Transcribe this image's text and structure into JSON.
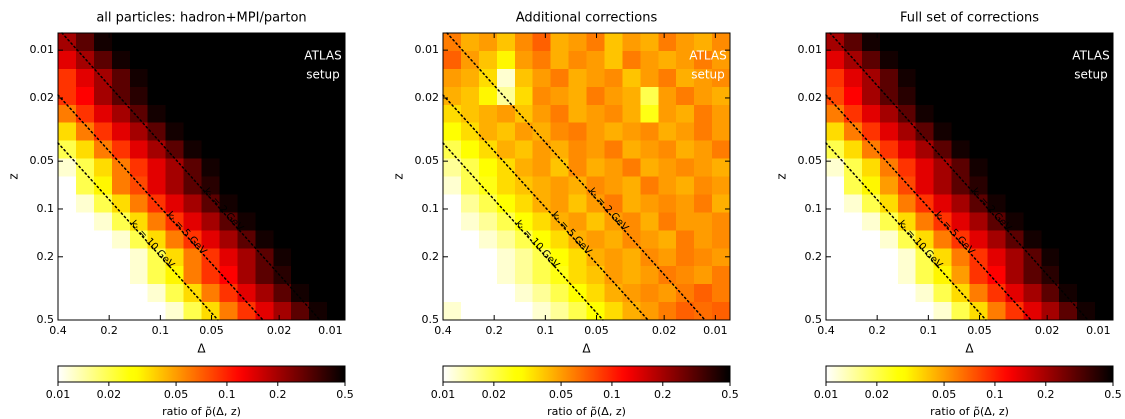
{
  "chart_data": [
    {
      "type": "heatmap",
      "title": "all particles: hadron+MPI/parton",
      "xlabel": "Δ",
      "ylabel": "z",
      "xscale": "log",
      "yscale": "log",
      "y_inverted": true,
      "xlim": [
        0.4,
        0.0082
      ],
      "ylim": [
        0.0078,
        0.5
      ],
      "xticks": [
        0.4,
        0.2,
        0.1,
        0.05,
        0.02,
        0.01
      ],
      "yticks": [
        0.01,
        0.02,
        0.05,
        0.1,
        0.2,
        0.5
      ],
      "colormap": "hot_r",
      "z": [
        [
          0.2,
          0.3,
          0.45,
          0.5,
          0.5,
          0.5,
          0.5,
          0.5,
          0.5,
          0.5,
          0.5,
          0.5,
          0.5,
          0.5,
          0.5,
          0.5
        ],
        [
          0.14,
          0.2,
          0.3,
          0.45,
          0.5,
          0.5,
          0.5,
          0.5,
          0.5,
          0.5,
          0.5,
          0.5,
          0.5,
          0.5,
          0.5,
          0.5
        ],
        [
          0.09,
          0.14,
          0.2,
          0.3,
          0.45,
          0.5,
          0.5,
          0.5,
          0.5,
          0.5,
          0.5,
          0.5,
          0.5,
          0.5,
          0.5,
          0.5
        ],
        [
          0.09,
          0.12,
          0.2,
          0.3,
          0.4,
          0.5,
          0.5,
          0.5,
          0.5,
          0.5,
          0.5,
          0.5,
          0.5,
          0.5,
          0.5,
          0.5
        ],
        [
          0.06,
          0.09,
          0.14,
          0.2,
          0.3,
          0.45,
          0.5,
          0.5,
          0.5,
          0.5,
          0.5,
          0.5,
          0.5,
          0.5,
          0.5,
          0.5
        ],
        [
          0.035,
          0.06,
          0.09,
          0.14,
          0.2,
          0.3,
          0.45,
          0.5,
          0.5,
          0.5,
          0.5,
          0.5,
          0.5,
          0.5,
          0.5,
          0.5
        ],
        [
          0.02,
          0.035,
          0.06,
          0.09,
          0.14,
          0.2,
          0.3,
          0.45,
          0.5,
          0.5,
          0.5,
          0.5,
          0.5,
          0.5,
          0.5,
          0.5
        ],
        [
          0.012,
          0.02,
          0.035,
          0.06,
          0.09,
          0.14,
          0.2,
          0.3,
          0.45,
          0.5,
          0.5,
          0.5,
          0.5,
          0.5,
          0.5,
          0.5
        ],
        [
          0.01,
          0.02,
          0.03,
          0.06,
          0.08,
          0.14,
          0.2,
          0.3,
          0.4,
          0.5,
          0.5,
          0.5,
          0.5,
          0.5,
          0.5,
          0.5
        ],
        [
          0.01,
          0.012,
          0.02,
          0.035,
          0.06,
          0.09,
          0.14,
          0.2,
          0.3,
          0.45,
          0.5,
          0.5,
          0.5,
          0.5,
          0.5,
          0.5
        ],
        [
          0.01,
          0.01,
          0.012,
          0.02,
          0.035,
          0.06,
          0.09,
          0.14,
          0.2,
          0.3,
          0.45,
          0.5,
          0.5,
          0.5,
          0.5,
          0.5
        ],
        [
          0.01,
          0.01,
          0.01,
          0.012,
          0.02,
          0.035,
          0.06,
          0.09,
          0.14,
          0.2,
          0.3,
          0.45,
          0.5,
          0.5,
          0.5,
          0.5
        ],
        [
          0.01,
          0.01,
          0.01,
          0.01,
          0.012,
          0.02,
          0.035,
          0.06,
          0.09,
          0.14,
          0.2,
          0.3,
          0.45,
          0.5,
          0.5,
          0.5
        ],
        [
          0.01,
          0.01,
          0.01,
          0.01,
          0.012,
          0.02,
          0.03,
          0.06,
          0.09,
          0.12,
          0.2,
          0.3,
          0.4,
          0.5,
          0.5,
          0.5
        ],
        [
          0.01,
          0.01,
          0.01,
          0.01,
          0.01,
          0.012,
          0.02,
          0.035,
          0.06,
          0.09,
          0.14,
          0.2,
          0.3,
          0.45,
          0.5,
          0.5
        ],
        [
          0.01,
          0.01,
          0.01,
          0.01,
          0.01,
          0.01,
          0.012,
          0.02,
          0.035,
          0.06,
          0.09,
          0.14,
          0.2,
          0.3,
          0.45,
          0.5
        ]
      ],
      "colorbar": {
        "label": "ratio of ρ̃(Δ, z)",
        "scale": "log",
        "lim": [
          0.01,
          0.5
        ],
        "ticks": [
          0.01,
          0.02,
          0.05,
          0.1,
          0.2,
          0.5
        ]
      },
      "annotations": {
        "setup": [
          "ATLAS",
          "setup"
        ],
        "kt_labels": [
          "kₜ = 2 GeV",
          "kₜ = 5 GeV",
          "kₜ = 10 GeV"
        ]
      }
    },
    {
      "type": "heatmap",
      "title": "Additional corrections",
      "xlabel": "Δ",
      "ylabel": "z",
      "xscale": "log",
      "yscale": "log",
      "y_inverted": true,
      "xlim": [
        0.4,
        0.0082
      ],
      "ylim": [
        0.0078,
        0.5
      ],
      "xticks": [
        0.4,
        0.2,
        0.1,
        0.05,
        0.02,
        0.01
      ],
      "yticks": [
        0.01,
        0.02,
        0.05,
        0.1,
        0.2,
        0.5
      ],
      "colormap": "hot_r",
      "z": [
        [
          0.06,
          0.045,
          0.05,
          0.04,
          0.055,
          0.07,
          0.045,
          0.05,
          0.06,
          0.04,
          0.05,
          0.045,
          0.06,
          0.05,
          0.045,
          0.055
        ],
        [
          0.07,
          0.05,
          0.04,
          0.03,
          0.05,
          0.06,
          0.045,
          0.055,
          0.05,
          0.04,
          0.06,
          0.05,
          0.045,
          0.05,
          0.06,
          0.05
        ],
        [
          0.05,
          0.045,
          0.035,
          0.012,
          0.04,
          0.05,
          0.06,
          0.045,
          0.05,
          0.055,
          0.04,
          0.05,
          0.06,
          0.045,
          0.05,
          0.055
        ],
        [
          0.045,
          0.04,
          0.03,
          0.015,
          0.035,
          0.055,
          0.05,
          0.045,
          0.06,
          0.05,
          0.045,
          0.02,
          0.05,
          0.06,
          0.05,
          0.045
        ],
        [
          0.035,
          0.04,
          0.045,
          0.05,
          0.04,
          0.05,
          0.06,
          0.045,
          0.05,
          0.055,
          0.045,
          0.025,
          0.05,
          0.045,
          0.06,
          0.05
        ],
        [
          0.028,
          0.035,
          0.045,
          0.04,
          0.05,
          0.045,
          0.055,
          0.06,
          0.05,
          0.045,
          0.05,
          0.055,
          0.045,
          0.05,
          0.06,
          0.05
        ],
        [
          0.02,
          0.028,
          0.035,
          0.045,
          0.04,
          0.05,
          0.045,
          0.055,
          0.05,
          0.06,
          0.045,
          0.05,
          0.055,
          0.045,
          0.05,
          0.06
        ],
        [
          0.015,
          0.02,
          0.028,
          0.035,
          0.045,
          0.05,
          0.04,
          0.055,
          0.045,
          0.05,
          0.06,
          0.045,
          0.05,
          0.055,
          0.05,
          0.045
        ],
        [
          0.012,
          0.02,
          0.025,
          0.035,
          0.04,
          0.045,
          0.05,
          0.045,
          0.055,
          0.05,
          0.045,
          0.06,
          0.05,
          0.045,
          0.055,
          0.05
        ],
        [
          0.01,
          0.015,
          0.02,
          0.028,
          0.035,
          0.045,
          0.05,
          0.04,
          0.05,
          0.06,
          0.045,
          0.05,
          0.055,
          0.05,
          0.06,
          0.045
        ],
        [
          0.01,
          0.012,
          0.015,
          0.02,
          0.028,
          0.035,
          0.045,
          0.05,
          0.04,
          0.05,
          0.055,
          0.045,
          0.06,
          0.05,
          0.05,
          0.055
        ],
        [
          0.01,
          0.01,
          0.012,
          0.015,
          0.02,
          0.028,
          0.035,
          0.045,
          0.05,
          0.045,
          0.055,
          0.05,
          0.045,
          0.06,
          0.05,
          0.055
        ],
        [
          0.01,
          0.01,
          0.01,
          0.012,
          0.015,
          0.02,
          0.028,
          0.035,
          0.045,
          0.05,
          0.045,
          0.055,
          0.05,
          0.06,
          0.055,
          0.05
        ],
        [
          0.01,
          0.01,
          0.01,
          0.012,
          0.015,
          0.02,
          0.025,
          0.035,
          0.04,
          0.05,
          0.045,
          0.05,
          0.06,
          0.055,
          0.05,
          0.06
        ],
        [
          0.01,
          0.01,
          0.01,
          0.01,
          0.012,
          0.015,
          0.02,
          0.028,
          0.035,
          0.045,
          0.05,
          0.055,
          0.05,
          0.06,
          0.07,
          0.06
        ],
        [
          0.012,
          0.01,
          0.01,
          0.01,
          0.01,
          0.012,
          0.015,
          0.02,
          0.028,
          0.035,
          0.045,
          0.05,
          0.06,
          0.07,
          0.065,
          0.07
        ]
      ],
      "colorbar": {
        "label": "ratio of ρ̃(Δ, z)",
        "scale": "log",
        "lim": [
          0.01,
          0.5
        ],
        "ticks": [
          0.01,
          0.02,
          0.05,
          0.1,
          0.2,
          0.5
        ]
      },
      "annotations": {
        "setup": [
          "ATLAS",
          "setup"
        ],
        "kt_labels": [
          "kₜ = 2 GeV",
          "kₜ = 5 GeV",
          "kₜ = 10 GeV"
        ]
      }
    },
    {
      "type": "heatmap",
      "title": "Full set of corrections",
      "xlabel": "Δ",
      "ylabel": "z",
      "xscale": "log",
      "yscale": "log",
      "y_inverted": true,
      "xlim": [
        0.4,
        0.0082
      ],
      "ylim": [
        0.0078,
        0.5
      ],
      "xticks": [
        0.4,
        0.2,
        0.1,
        0.05,
        0.02,
        0.01
      ],
      "yticks": [
        0.01,
        0.02,
        0.05,
        0.1,
        0.2,
        0.5
      ],
      "colormap": "hot_r",
      "z": [
        [
          0.2,
          0.3,
          0.45,
          0.5,
          0.5,
          0.5,
          0.5,
          0.5,
          0.5,
          0.5,
          0.5,
          0.5,
          0.5,
          0.5,
          0.5,
          0.5
        ],
        [
          0.14,
          0.2,
          0.3,
          0.45,
          0.5,
          0.5,
          0.5,
          0.5,
          0.5,
          0.5,
          0.5,
          0.5,
          0.5,
          0.5,
          0.5,
          0.5
        ],
        [
          0.09,
          0.14,
          0.2,
          0.3,
          0.45,
          0.5,
          0.5,
          0.5,
          0.5,
          0.5,
          0.5,
          0.5,
          0.5,
          0.5,
          0.5,
          0.5
        ],
        [
          0.08,
          0.12,
          0.2,
          0.3,
          0.4,
          0.5,
          0.5,
          0.5,
          0.5,
          0.5,
          0.5,
          0.5,
          0.5,
          0.5,
          0.5,
          0.5
        ],
        [
          0.06,
          0.09,
          0.14,
          0.2,
          0.3,
          0.45,
          0.5,
          0.5,
          0.5,
          0.5,
          0.5,
          0.5,
          0.5,
          0.5,
          0.5,
          0.5
        ],
        [
          0.035,
          0.06,
          0.09,
          0.14,
          0.2,
          0.3,
          0.45,
          0.5,
          0.5,
          0.5,
          0.5,
          0.5,
          0.5,
          0.5,
          0.5,
          0.5
        ],
        [
          0.02,
          0.035,
          0.06,
          0.09,
          0.14,
          0.2,
          0.3,
          0.45,
          0.5,
          0.5,
          0.5,
          0.5,
          0.5,
          0.5,
          0.5,
          0.5
        ],
        [
          0.012,
          0.02,
          0.035,
          0.06,
          0.09,
          0.14,
          0.2,
          0.3,
          0.45,
          0.5,
          0.5,
          0.5,
          0.5,
          0.5,
          0.5,
          0.5
        ],
        [
          0.01,
          0.02,
          0.03,
          0.05,
          0.08,
          0.14,
          0.2,
          0.3,
          0.4,
          0.5,
          0.5,
          0.5,
          0.5,
          0.5,
          0.5,
          0.5
        ],
        [
          0.01,
          0.012,
          0.02,
          0.035,
          0.06,
          0.09,
          0.14,
          0.2,
          0.3,
          0.45,
          0.5,
          0.5,
          0.5,
          0.5,
          0.5,
          0.5
        ],
        [
          0.01,
          0.01,
          0.012,
          0.02,
          0.035,
          0.06,
          0.09,
          0.14,
          0.2,
          0.3,
          0.45,
          0.5,
          0.5,
          0.5,
          0.5,
          0.5
        ],
        [
          0.01,
          0.01,
          0.01,
          0.012,
          0.02,
          0.035,
          0.06,
          0.09,
          0.14,
          0.2,
          0.3,
          0.45,
          0.5,
          0.5,
          0.5,
          0.5
        ],
        [
          0.01,
          0.01,
          0.01,
          0.01,
          0.012,
          0.02,
          0.035,
          0.06,
          0.09,
          0.14,
          0.2,
          0.3,
          0.45,
          0.5,
          0.5,
          0.5
        ],
        [
          0.01,
          0.01,
          0.01,
          0.01,
          0.012,
          0.02,
          0.03,
          0.05,
          0.09,
          0.12,
          0.2,
          0.3,
          0.4,
          0.5,
          0.5,
          0.5
        ],
        [
          0.01,
          0.01,
          0.01,
          0.01,
          0.01,
          0.012,
          0.02,
          0.035,
          0.06,
          0.09,
          0.14,
          0.2,
          0.3,
          0.45,
          0.5,
          0.5
        ],
        [
          0.01,
          0.01,
          0.01,
          0.01,
          0.01,
          0.01,
          0.012,
          0.02,
          0.035,
          0.06,
          0.09,
          0.14,
          0.2,
          0.3,
          0.45,
          0.5
        ]
      ],
      "colorbar": {
        "label": "ratio of ρ̃(Δ, z)",
        "scale": "log",
        "lim": [
          0.01,
          0.5
        ],
        "ticks": [
          0.01,
          0.02,
          0.05,
          0.1,
          0.2,
          0.5
        ]
      },
      "annotations": {
        "setup": [
          "ATLAS",
          "setup"
        ],
        "kt_labels": [
          "kₜ = 2 GeV",
          "kₜ = 5 GeV",
          "kₜ = 10 GeV"
        ]
      }
    }
  ]
}
